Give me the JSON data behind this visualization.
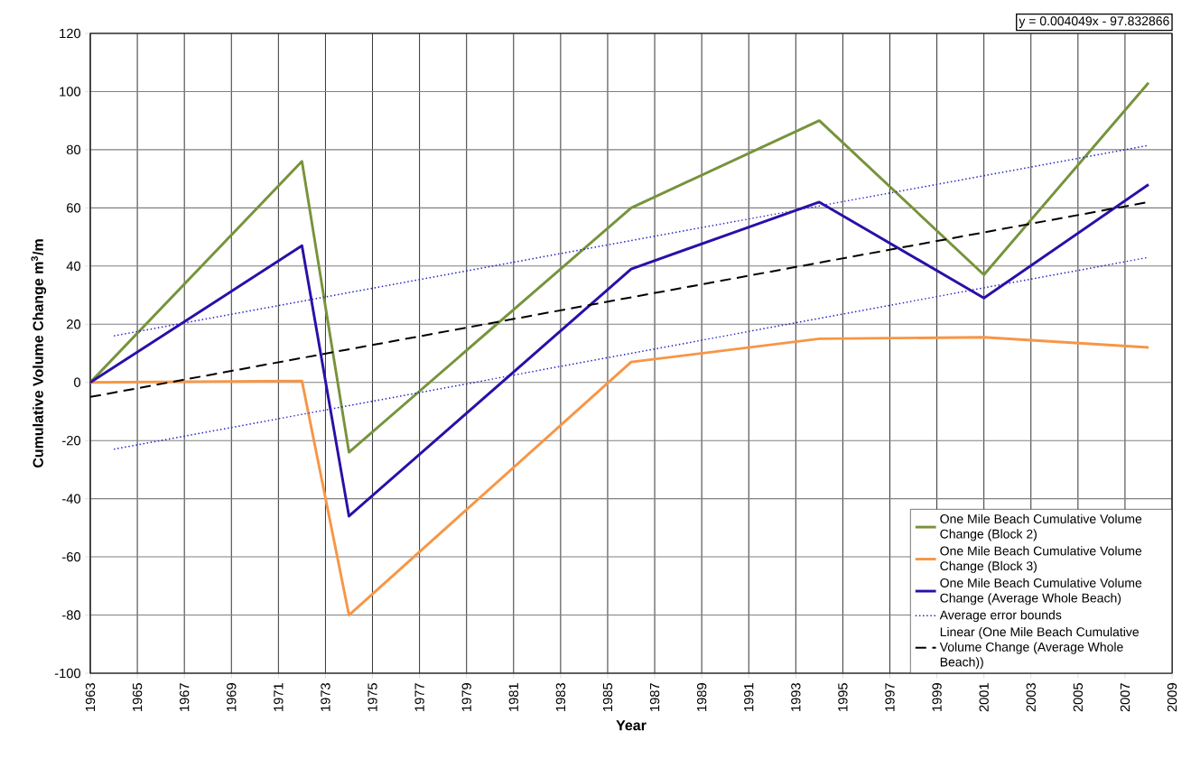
{
  "chart_data": {
    "type": "line",
    "xlabel": "Year",
    "ylabel": "Cumulative Volume Change m$^{3}$/m",
    "xlim": [
      1963,
      2009
    ],
    "ylim": [
      -100,
      120
    ],
    "xticks": [
      1963,
      1965,
      1967,
      1969,
      1971,
      1973,
      1975,
      1977,
      1979,
      1981,
      1983,
      1985,
      1987,
      1989,
      1991,
      1993,
      1995,
      1997,
      1999,
      2001,
      2003,
      2005,
      2007,
      2009
    ],
    "yticks": [
      -100,
      -80,
      -60,
      -40,
      -20,
      0,
      20,
      40,
      60,
      80,
      100,
      120
    ],
    "grid": true,
    "legend": "bottom right",
    "annotations": [
      "y = 0.004049x  - 97.832866"
    ],
    "series": [
      {
        "name": "One Mile Beach Cumulative Volume Change (Block 2)",
        "color": "#77933c",
        "line_style": "solid",
        "x": [
          1963,
          1972,
          1974,
          1986,
          1994,
          2001,
          2008
        ],
        "values": [
          0,
          76,
          -24,
          60,
          90,
          37,
          103
        ]
      },
      {
        "name": "One Mile Beach Cumulative Volume Change (Block 3)",
        "color": "#f79646",
        "line_style": "solid",
        "x": [
          1963,
          1972,
          1974,
          1986,
          1994,
          2001,
          2008
        ],
        "values": [
          0,
          0.5,
          -80,
          7,
          15,
          15.5,
          12
        ]
      },
      {
        "name": "One Mile Beach Cumulative Volume Change (Average Whole Beach)",
        "color": "#2a0fa8",
        "line_style": "solid",
        "x": [
          1963,
          1972,
          1974,
          1986,
          1994,
          2001,
          2008
        ],
        "values": [
          0,
          47,
          -46,
          39,
          62,
          29,
          68
        ]
      },
      {
        "name": "Average error bounds",
        "color": "#2222c0",
        "line_style": "dotted",
        "x": [
          1964,
          2008
        ],
        "values": [
          16,
          81.5
        ]
      },
      {
        "color": "#2222c0",
        "line_style": "dotted",
        "x": [
          1964,
          2008
        ],
        "values": [
          -23,
          43
        ]
      },
      {
        "name": "Linear (One Mile Beach Cumulative Volume Change (Average Whole Beach))",
        "color": "#000000",
        "line_style": "dashed",
        "x": [
          1963,
          2008
        ],
        "values": [
          -5,
          62
        ]
      }
    ]
  }
}
